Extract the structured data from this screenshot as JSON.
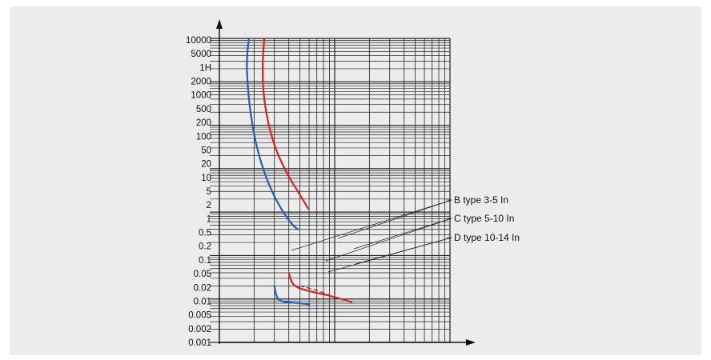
{
  "chart_data": {
    "type": "line",
    "title": "",
    "xlabel": "",
    "ylabel": "",
    "y_scale": "log",
    "x_scale": "log",
    "grid": true,
    "y_ticks": [
      "10000",
      "5000",
      "1H",
      "2000",
      "1000",
      "500",
      "200",
      "100",
      "50",
      "20",
      "10",
      "5",
      "2",
      "1",
      "0.5",
      "0.2",
      "0.1",
      "0.05",
      "0.02",
      "0.01",
      "0.005",
      "0.002",
      "0.001"
    ],
    "ylim": [
      0.001,
      10000
    ],
    "xlim": [
      1,
      100
    ],
    "annotations": [
      {
        "label": "B type 3-5 In",
        "points_to_x": [
          3,
          5
        ]
      },
      {
        "label": "C type 5-10 In",
        "points_to_x": [
          5,
          10
        ]
      },
      {
        "label": "D type 10-14 In",
        "points_to_x": [
          10,
          14
        ]
      }
    ],
    "series": [
      {
        "color": "#1f5fbf",
        "segments": [
          [
            [
              1.8,
              10000
            ],
            [
              1.72,
              3000
            ],
            [
              1.75,
              1000
            ],
            [
              1.85,
              200
            ],
            [
              2.1,
              30
            ],
            [
              2.6,
              5
            ],
            [
              3.4,
              1.2
            ],
            [
              4.3,
              0.5
            ],
            [
              4.8,
              0.4
            ]
          ],
          [
            [
              3.0,
              0.02
            ],
            [
              3.15,
              0.01
            ],
            [
              3.6,
              0.0085
            ],
            [
              5,
              0.008
            ],
            [
              6,
              0.0075
            ]
          ]
        ]
      },
      {
        "color": "#e02020",
        "segments": [
          [
            [
              2.45,
              10000
            ],
            [
              2.35,
              2000
            ],
            [
              2.45,
              300
            ],
            [
              2.9,
              40
            ],
            [
              3.8,
              8
            ],
            [
              5,
              2.5
            ],
            [
              5.9,
              1.2
            ]
          ],
          [
            [
              4.0,
              0.04
            ],
            [
              4.3,
              0.02
            ],
            [
              6,
              0.015
            ],
            [
              9,
              0.012
            ],
            [
              14,
              0.0085
            ]
          ]
        ]
      },
      {
        "color": "#555555",
        "dashed": true,
        "segments": [
          [
            [
              5,
              0.02
            ],
            [
              7,
              0.016
            ],
            [
              10,
              0.011
            ]
          ]
        ]
      }
    ]
  }
}
